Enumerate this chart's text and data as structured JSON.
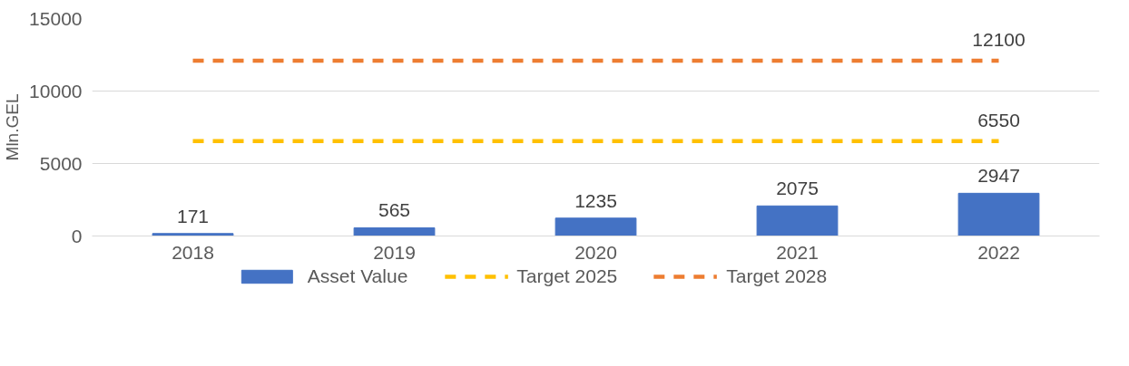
{
  "chart_data": {
    "type": "bar",
    "ylabel": "Mln.GEL",
    "categories": [
      "2018",
      "2019",
      "2020",
      "2021",
      "2022"
    ],
    "series": [
      {
        "name": "Asset Value",
        "color": "#4472c4",
        "values": [
          171,
          565,
          1235,
          2075,
          2947
        ],
        "value_labels": [
          "171",
          "565",
          "1235",
          "2075",
          "2947"
        ]
      },
      {
        "name": "Target 2025",
        "type": "line",
        "color": "#ffc000",
        "line_style": "dashed",
        "values": [
          6550,
          6550,
          6550,
          6550,
          6550
        ],
        "value_labels": [
          null,
          null,
          null,
          null,
          "6550"
        ]
      },
      {
        "name": "Target 2028",
        "type": "line",
        "color": "#ed7d31",
        "line_style": "dashed",
        "values": [
          12100,
          12100,
          12100,
          12100,
          12100
        ],
        "value_labels": [
          null,
          null,
          null,
          null,
          "12100"
        ]
      }
    ],
    "ylim": [
      0,
      15000
    ],
    "yticks": [
      0,
      5000,
      10000,
      15000
    ],
    "grid": "y",
    "legend": "bottom"
  }
}
